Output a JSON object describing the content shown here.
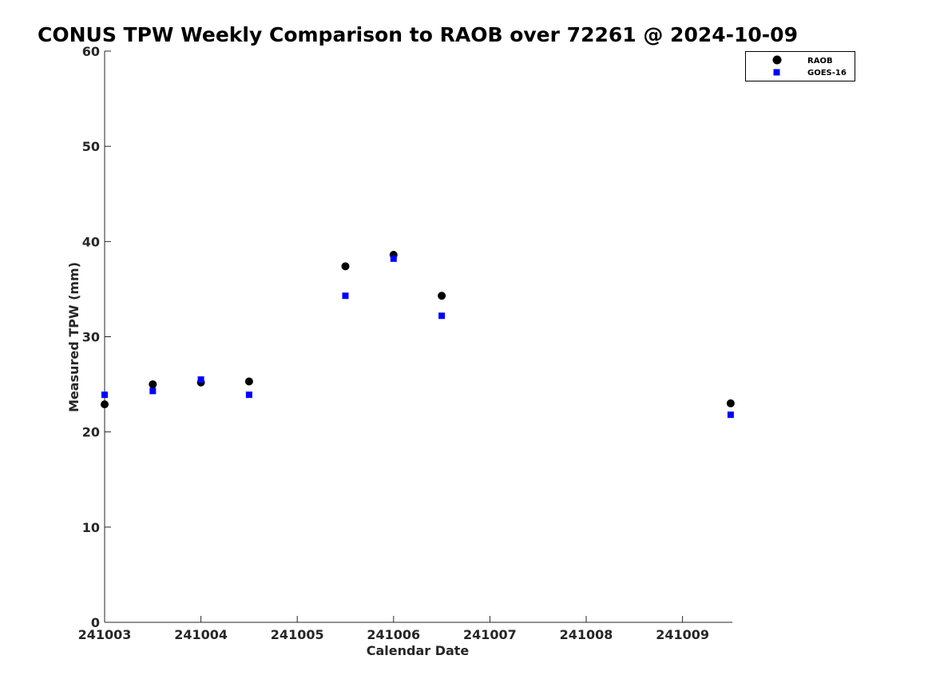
{
  "chart_data": {
    "type": "scatter",
    "title": "CONUS TPW Weekly Comparison to RAOB over 72261 @ 2024-10-09",
    "xlabel": "Calendar Date",
    "ylabel": "Measured TPW (mm)",
    "x_ticks": [
      "241003",
      "241004",
      "241005",
      "241006",
      "241007",
      "241008",
      "241009"
    ],
    "y_ticks": [
      "0",
      "10",
      "20",
      "30",
      "40",
      "50",
      "60"
    ],
    "ylim": [
      0,
      60
    ],
    "grid": false,
    "legend_position": "top-right",
    "series": [
      {
        "name": "RAOB",
        "marker": "circle",
        "color": "#000000",
        "points": [
          {
            "x": "2024-10-03 00Z",
            "y": 22.9
          },
          {
            "x": "2024-10-03 12Z",
            "y": 25.0
          },
          {
            "x": "2024-10-04 00Z",
            "y": 25.2
          },
          {
            "x": "2024-10-04 12Z",
            "y": 25.3
          },
          {
            "x": "2024-10-05 12Z",
            "y": 37.4
          },
          {
            "x": "2024-10-06 00Z",
            "y": 38.6
          },
          {
            "x": "2024-10-06 12Z",
            "y": 34.3
          },
          {
            "x": "2024-10-09 12Z",
            "y": 23.0
          }
        ]
      },
      {
        "name": "GOES-16",
        "marker": "square",
        "color": "#0000ff",
        "points": [
          {
            "x": "2024-10-03 00Z",
            "y": 23.9
          },
          {
            "x": "2024-10-03 12Z",
            "y": 24.3
          },
          {
            "x": "2024-10-04 00Z",
            "y": 25.5
          },
          {
            "x": "2024-10-04 12Z",
            "y": 23.9
          },
          {
            "x": "2024-10-05 12Z",
            "y": 34.3
          },
          {
            "x": "2024-10-06 00Z",
            "y": 38.2
          },
          {
            "x": "2024-10-06 12Z",
            "y": 32.2
          },
          {
            "x": "2024-10-09 12Z",
            "y": 21.8
          }
        ]
      }
    ]
  }
}
